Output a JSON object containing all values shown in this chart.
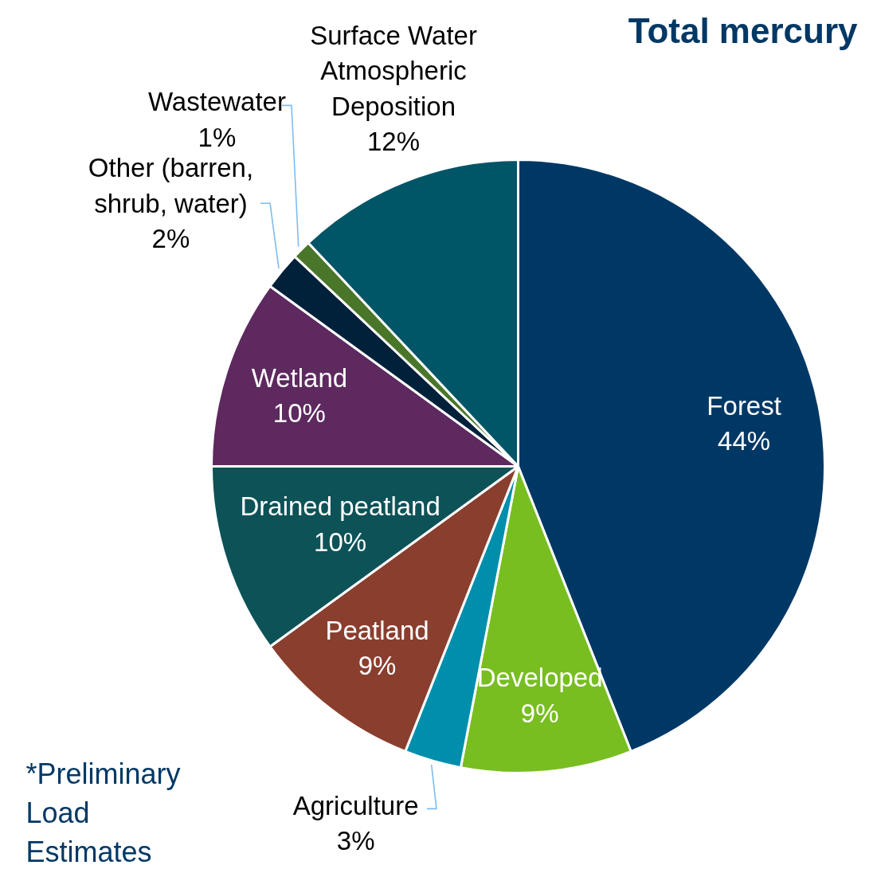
{
  "chart_data": {
    "type": "pie",
    "title": "Total mercury",
    "categories": [
      "Forest",
      "Developed",
      "Agriculture",
      "Peatland",
      "Drained peatland",
      "Wetland",
      "Other (barren, shrub, water)",
      "Wastewater",
      "Surface Water Atmospheric Deposition"
    ],
    "values": [
      44,
      9,
      3,
      9,
      10,
      10,
      2,
      1,
      12
    ],
    "value_labels": [
      "44%",
      "9%",
      "3%",
      "9%",
      "10%",
      "10%",
      "2%",
      "1%",
      "12%"
    ],
    "colors": [
      "#003865",
      "#78be21",
      "#008ead",
      "#8a3e2e",
      "#0d5257",
      "#5d295f",
      "#002139",
      "#4a7629",
      "#005566"
    ],
    "annotations": [
      "*Preliminary Load Estimates"
    ]
  }
}
